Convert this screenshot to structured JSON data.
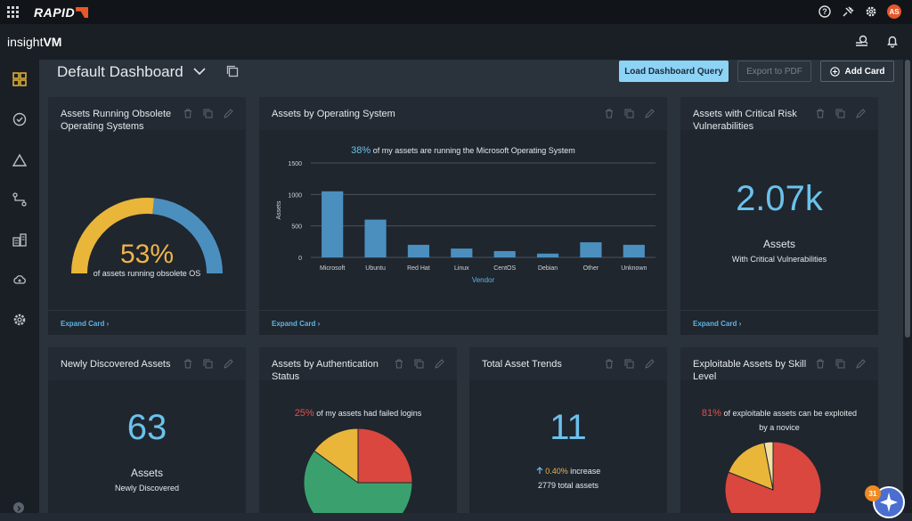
{
  "topbar": {
    "brand": "RAPID",
    "icons": [
      "apps-grid-icon",
      "help-icon",
      "plugin-icon",
      "gear-icon"
    ],
    "avatar_initials": "AS"
  },
  "subbar": {
    "product_prefix": "insight",
    "product_suffix": "VM",
    "icons": [
      "scan-search-icon",
      "bell-icon"
    ]
  },
  "sidebar": {
    "items": [
      "dashboard-icon",
      "check-circle-icon",
      "warning-triangle-icon",
      "route-icon",
      "assets-icon",
      "cloud-icon",
      "settings-gear-icon"
    ]
  },
  "dashboard": {
    "title": "Default Dashboard",
    "load_query_label": "Load Dashboard Query",
    "export_pdf_label": "Export to PDF",
    "add_card_label": "Add Card"
  },
  "cards": {
    "obsolete": {
      "title_line1": "Assets Running Obsolete",
      "title_line2": "Operating Systems",
      "percent": "53%",
      "percent_value": 53,
      "caption": "of assets running obsolete OS",
      "expand_label": "Expand Card"
    },
    "os": {
      "title": "Assets by Operating System",
      "caption_pct": "38%",
      "caption_text": " of my assets are running the Microsoft Operating System",
      "expand_label": "Expand Card"
    },
    "critical": {
      "title_line1": "Assets with Critical Risk",
      "title_line2": "Vulnerabilities",
      "value": "2.07k",
      "label": "Assets",
      "sublabel": "With Critical Vulnerabilities",
      "expand_label": "Expand Card"
    },
    "newly": {
      "title": "Newly Discovered Assets",
      "value": "63",
      "label": "Assets",
      "sublabel": "Newly Discovered"
    },
    "auth": {
      "title_line1": "Assets by Authentication",
      "title_line2": "Status",
      "caption_pct": "25%",
      "caption_text": " of my assets had failed logins"
    },
    "trends": {
      "title": "Total Asset Trends",
      "value": "11",
      "increase_pct": "0.40%",
      "increase_text": " increase",
      "total_text": "2779 total assets"
    },
    "exploit": {
      "title_line1": "Exploitable Assets by Skill",
      "title_line2": "Level",
      "caption_pct": "81%",
      "caption_line1": " of exploitable assets can be exploited",
      "caption_line2": "by a novice"
    }
  },
  "chart_data": [
    {
      "type": "bar",
      "categories": [
        "Microsoft",
        "Ubuntu",
        "Red Hat",
        "Linux",
        "CentOS",
        "Debian",
        "Other",
        "Unknown"
      ],
      "values": [
        1050,
        600,
        200,
        140,
        100,
        60,
        240,
        200
      ],
      "xlabel": "Vendor",
      "ylabel": "Assets",
      "ylim": [
        0,
        1500
      ],
      "yticks": [
        "1500",
        "1000",
        "500",
        "0"
      ],
      "grid": true,
      "color": "#4b8fbf"
    },
    {
      "type": "pie",
      "slices": [
        {
          "value": 25,
          "color": "#d9473f"
        },
        {
          "value": 60,
          "color": "#3aa16e"
        },
        {
          "value": 15,
          "color": "#e9b63a"
        }
      ]
    },
    {
      "type": "pie",
      "slices": [
        {
          "value": 81,
          "color": "#d9473f"
        },
        {
          "value": 16,
          "color": "#e9b63a"
        },
        {
          "value": 3,
          "color": "#f3e0a0"
        }
      ]
    }
  ],
  "badge": {
    "count": "31"
  },
  "colors": {
    "accent": "#6bc1ec",
    "gauge_fill": "#e9b63a",
    "gauge_rest": "#4b8fbf",
    "alert_red": "#e0524a",
    "increase": "#f0b44a"
  }
}
